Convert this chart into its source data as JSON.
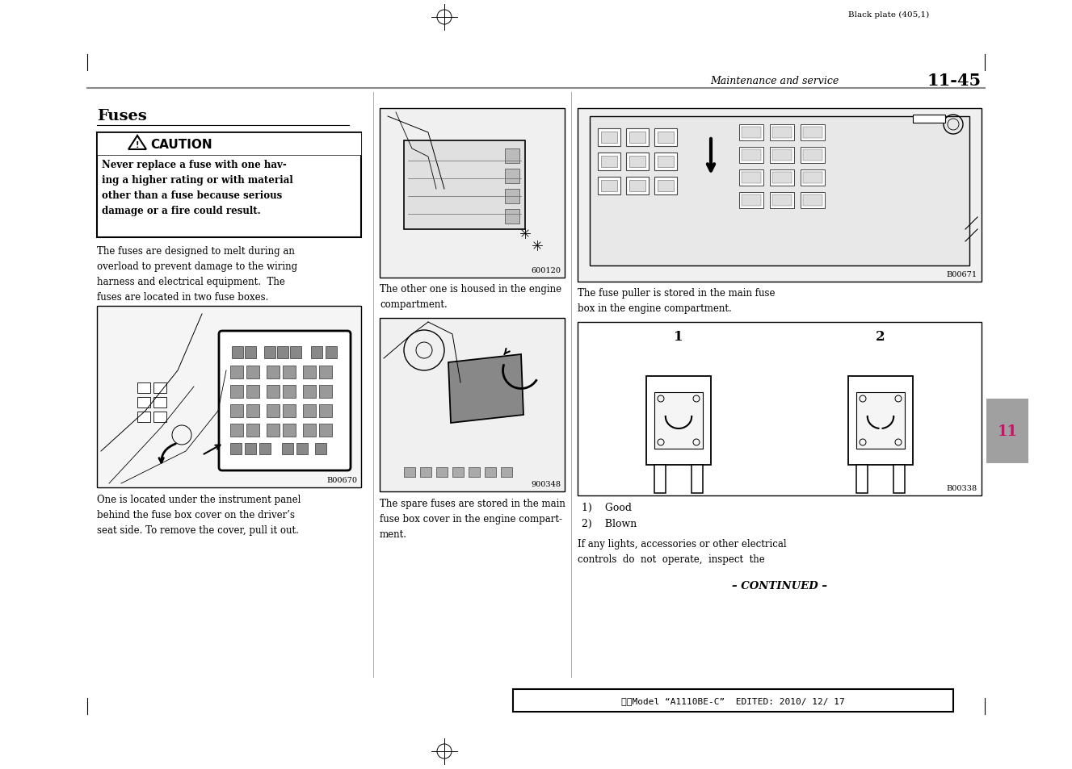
{
  "page_bg": "#ffffff",
  "top_text": "Black plate (405,1)",
  "header_italic": "Maintenance and service",
  "header_bold": "11-45",
  "section_title": "Fuses",
  "caution_header": "CAUTION",
  "caution_body": "Never replace a fuse with one hav-\ning a higher rating or with material\nother than a fuse because serious\ndamage or a fire could result.",
  "body_text1": "The fuses are designed to melt during an\noverload to prevent damage to the wiring\nharness and electrical equipment.  The\nfuses are located in two fuse boxes.",
  "caption1": "One is located under the instrument panel\nbehind the fuse box cover on the driver’s\nseat side. To remove the cover, pull it out.",
  "caption2": "The other one is housed in the engine\ncompartment.",
  "caption3": "The spare fuses are stored in the main\nfuse box cover in the engine compart-\nment.",
  "caption4": "The fuse puller is stored in the main fuse\nbox in the engine compartment.",
  "fig_label1": "B00670",
  "fig_label2": "600120",
  "fig_label3": "900348",
  "fig_label4": "B00671",
  "fig_label5": "B00338",
  "list_item1": "1)    Good",
  "list_item2": "2)    Blown",
  "fuse_header1": "1",
  "fuse_header2": "2",
  "last_text": "If any lights, accessories or other electrical\ncontrols  do  not  operate,  inspect  the",
  "continued": "– CONTINUED –",
  "bottom_bar_text": "北米Model “A1110BE-C”  EDITED: 2010/ 12/ 17",
  "tab_text": "11",
  "gray_tab": "#a0a0a0",
  "light_gray": "#f0f0f0",
  "mid_gray": "#b0b0b0"
}
